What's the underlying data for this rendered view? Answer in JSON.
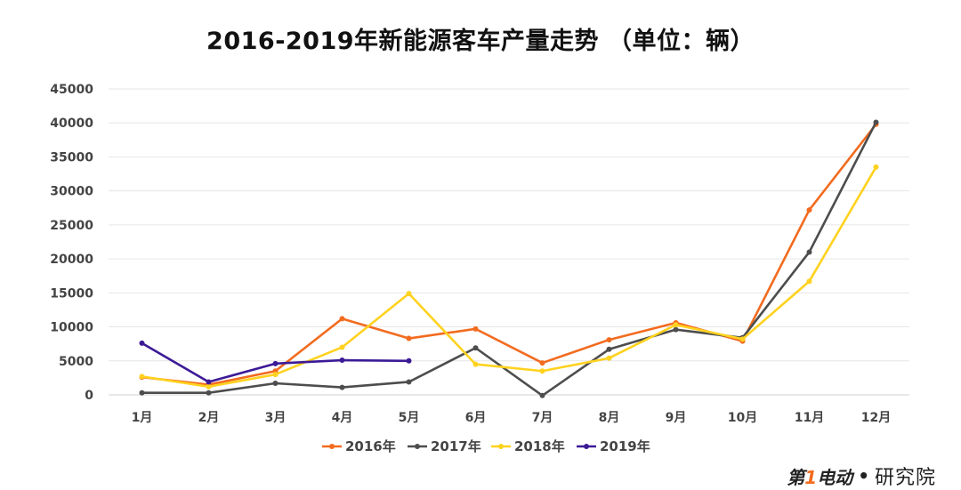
{
  "chart_data": {
    "type": "line",
    "title": "2016-2019年新能源客车产量走势  （单位：辆）",
    "categories": [
      "1月",
      "2月",
      "3月",
      "4月",
      "5月",
      "6月",
      "7月",
      "8月",
      "9月",
      "10月",
      "11月",
      "12月"
    ],
    "ylim": [
      0,
      45000
    ],
    "yticks": [
      0,
      5000,
      10000,
      15000,
      20000,
      25000,
      30000,
      35000,
      40000,
      45000
    ],
    "grid": true,
    "legend_position": "bottom",
    "series": [
      {
        "name": "2016年",
        "color": "#f26b1f",
        "values": [
          2600,
          1500,
          3500,
          11200,
          8300,
          9700,
          4700,
          8100,
          10600,
          7900,
          27200,
          39800
        ]
      },
      {
        "name": "2017年",
        "color": "#4d4d4d",
        "values": [
          300,
          300,
          1700,
          1100,
          1900,
          6900,
          -100,
          6700,
          9600,
          8400,
          21000,
          40100
        ]
      },
      {
        "name": "2018年",
        "color": "#ffd21f",
        "values": [
          2700,
          1200,
          3000,
          7000,
          14900,
          4500,
          3500,
          5400,
          10300,
          8200,
          16700,
          33500
        ]
      },
      {
        "name": "2019年",
        "color": "#3c1a96",
        "values": [
          7600,
          1900,
          4600,
          5100,
          5000,
          null,
          null,
          null,
          null,
          null,
          null,
          null
        ]
      }
    ]
  },
  "brand": {
    "mark_prefix": "第",
    "mark_number": "1",
    "mark_suffix": "电动",
    "separator": "•",
    "sub": "研究院"
  }
}
